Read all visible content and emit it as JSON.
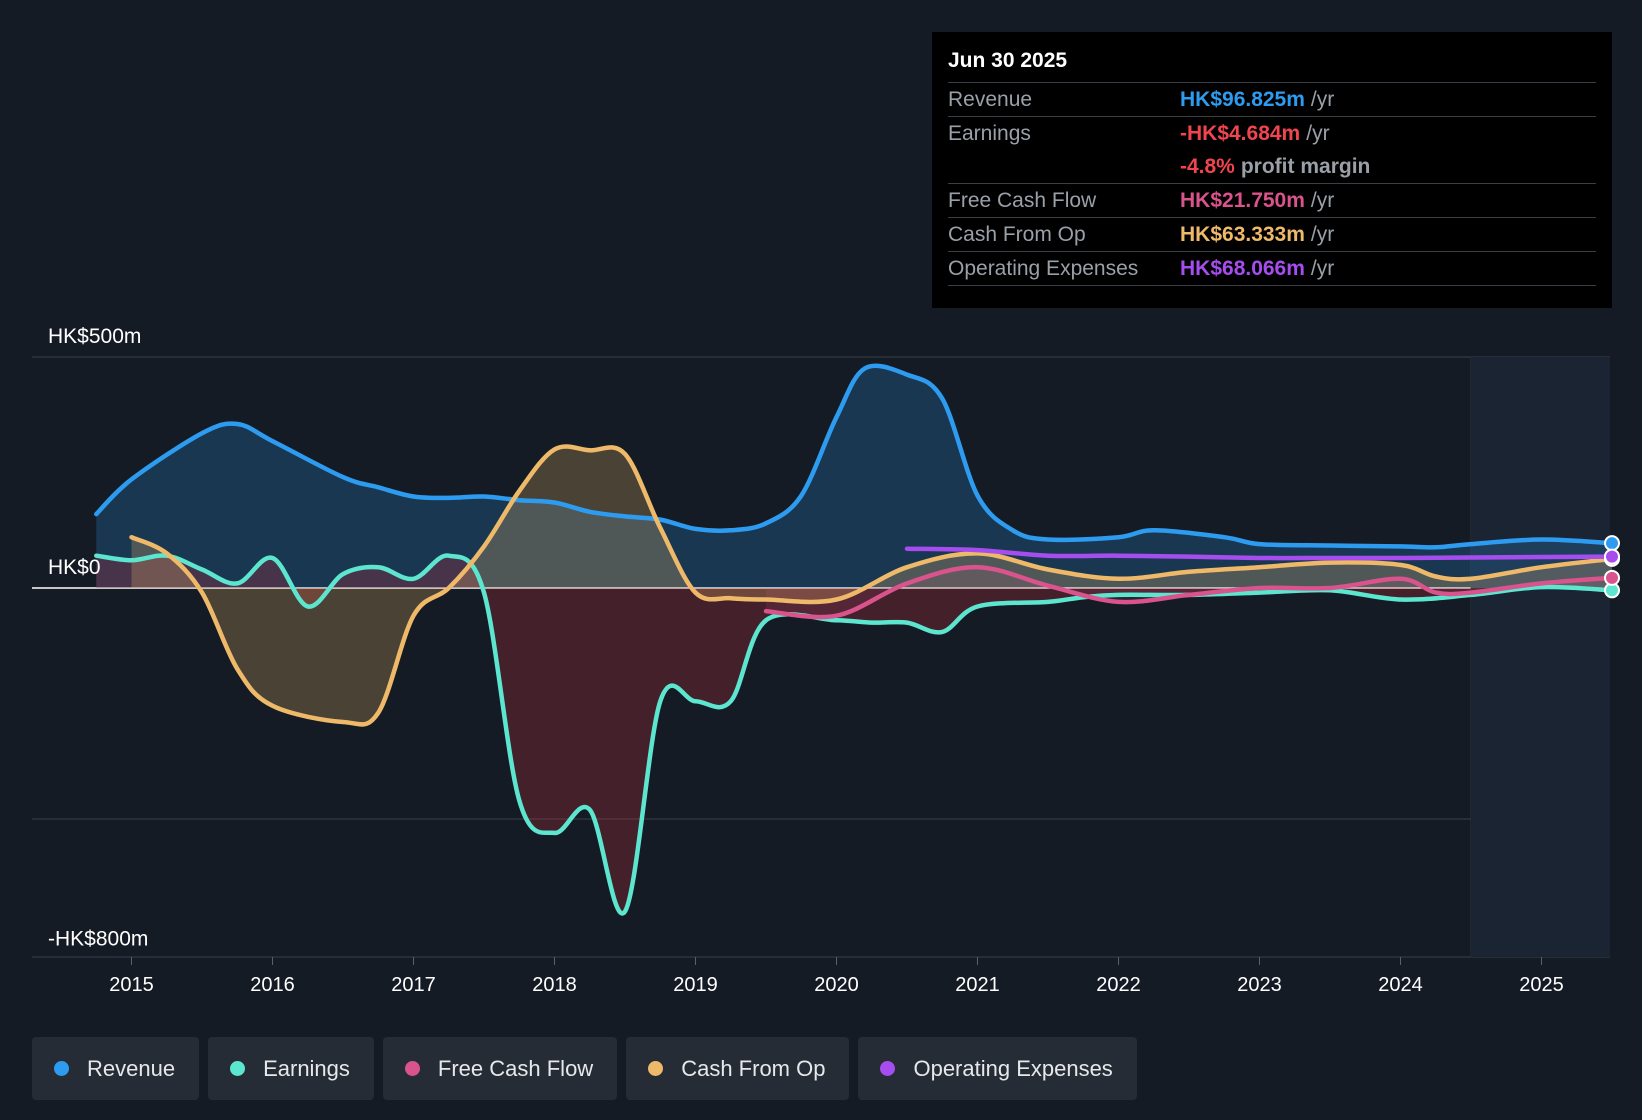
{
  "tooltip": {
    "date": "Jun 30 2025",
    "rows": [
      {
        "label": "Revenue",
        "value": "HK$96.825m",
        "unit": "/yr",
        "color": "#2d9cf0"
      },
      {
        "label": "Earnings",
        "value": "-HK$4.684m",
        "unit": "/yr",
        "color": "#f0444f"
      },
      {
        "label": "",
        "value": "-4.8%",
        "unit": "profit margin",
        "color": "#f0444f"
      },
      {
        "label": "Free Cash Flow",
        "value": "HK$21.750m",
        "unit": "/yr",
        "color": "#d9538c"
      },
      {
        "label": "Cash From Op",
        "value": "HK$63.333m",
        "unit": "/yr",
        "color": "#efb96a"
      },
      {
        "label": "Operating Expenses",
        "value": "HK$68.066m",
        "unit": "/yr",
        "color": "#a64df0"
      }
    ]
  },
  "legend": [
    {
      "label": "Revenue",
      "color": "#2d9cf0"
    },
    {
      "label": "Earnings",
      "color": "#5ce6d0"
    },
    {
      "label": "Free Cash Flow",
      "color": "#d9538c"
    },
    {
      "label": "Cash From Op",
      "color": "#efb96a"
    },
    {
      "label": "Operating Expenses",
      "color": "#a64df0"
    }
  ],
  "chart_data": {
    "type": "area",
    "title": "",
    "xlabel": "",
    "ylabel": "",
    "y_tick_labels": [
      {
        "label": "HK$500m",
        "value": 500
      },
      {
        "label": "HK$0",
        "value": 0
      },
      {
        "label": "-HK$800m",
        "value": -800
      }
    ],
    "ylim": [
      -800,
      500
    ],
    "xlim": [
      2014.75,
      2025.5
    ],
    "x_ticks": [
      2015,
      2016,
      2017,
      2018,
      2019,
      2020,
      2021,
      2022,
      2023,
      2024,
      2025
    ],
    "forecast_shade_start": 2024.5,
    "gridlines": [
      500,
      0,
      -500
    ],
    "series": [
      {
        "name": "Revenue",
        "color": "#2d9cf0",
        "fill": true,
        "points": [
          [
            2014.75,
            160
          ],
          [
            2015,
            235
          ],
          [
            2015.5,
            335
          ],
          [
            2015.75,
            355
          ],
          [
            2016,
            318
          ],
          [
            2016.5,
            240
          ],
          [
            2016.75,
            218
          ],
          [
            2017,
            198
          ],
          [
            2017.25,
            195
          ],
          [
            2017.5,
            198
          ],
          [
            2017.75,
            190
          ],
          [
            2018,
            185
          ],
          [
            2018.25,
            165
          ],
          [
            2018.5,
            155
          ],
          [
            2018.75,
            148
          ],
          [
            2019,
            128
          ],
          [
            2019.25,
            125
          ],
          [
            2019.5,
            140
          ],
          [
            2019.75,
            200
          ],
          [
            2020,
            370
          ],
          [
            2020.2,
            475
          ],
          [
            2020.5,
            462
          ],
          [
            2020.75,
            410
          ],
          [
            2021,
            200
          ],
          [
            2021.25,
            125
          ],
          [
            2021.5,
            105
          ],
          [
            2022,
            110
          ],
          [
            2022.25,
            125
          ],
          [
            2022.75,
            110
          ],
          [
            2023,
            95
          ],
          [
            2023.5,
            92
          ],
          [
            2024,
            90
          ],
          [
            2024.25,
            88
          ],
          [
            2024.5,
            95
          ],
          [
            2025,
            105
          ],
          [
            2025.5,
            97
          ]
        ]
      },
      {
        "name": "Earnings",
        "color": "#5ce6d0",
        "fill": true,
        "points": [
          [
            2014.75,
            70
          ],
          [
            2015,
            60
          ],
          [
            2015.25,
            70
          ],
          [
            2015.5,
            40
          ],
          [
            2015.75,
            10
          ],
          [
            2016,
            65
          ],
          [
            2016.25,
            -40
          ],
          [
            2016.5,
            30
          ],
          [
            2016.75,
            45
          ],
          [
            2017,
            20
          ],
          [
            2017.25,
            70
          ],
          [
            2017.5,
            -10
          ],
          [
            2017.75,
            -460
          ],
          [
            2018,
            -530
          ],
          [
            2018.25,
            -480
          ],
          [
            2018.5,
            -700
          ],
          [
            2018.75,
            -245
          ],
          [
            2019,
            -245
          ],
          [
            2019.25,
            -245
          ],
          [
            2019.5,
            -70
          ],
          [
            2020,
            -70
          ],
          [
            2020.25,
            -75
          ],
          [
            2020.5,
            -75
          ],
          [
            2020.75,
            -95
          ],
          [
            2021,
            -40
          ],
          [
            2021.5,
            -30
          ],
          [
            2021.75,
            -20
          ],
          [
            2022,
            -15
          ],
          [
            2022.5,
            -15
          ],
          [
            2023,
            -10
          ],
          [
            2023.5,
            -5
          ],
          [
            2024,
            -25
          ],
          [
            2024.5,
            -15
          ],
          [
            2025,
            2
          ],
          [
            2025.5,
            -5
          ]
        ]
      },
      {
        "name": "Free Cash Flow",
        "color": "#d9538c",
        "fill": true,
        "points": [
          [
            2019.5,
            -50
          ],
          [
            2020,
            -60
          ],
          [
            2020.5,
            10
          ],
          [
            2021,
            45
          ],
          [
            2021.5,
            5
          ],
          [
            2022,
            -30
          ],
          [
            2022.5,
            -15
          ],
          [
            2023,
            0
          ],
          [
            2023.5,
            0
          ],
          [
            2024,
            20
          ],
          [
            2024.25,
            -10
          ],
          [
            2024.5,
            -10
          ],
          [
            2025,
            10
          ],
          [
            2025.5,
            22
          ]
        ]
      },
      {
        "name": "Cash From Op",
        "color": "#efb96a",
        "fill": true,
        "points": [
          [
            2015,
            110
          ],
          [
            2015.25,
            75
          ],
          [
            2015.5,
            -10
          ],
          [
            2015.75,
            -175
          ],
          [
            2016,
            -255
          ],
          [
            2016.5,
            -290
          ],
          [
            2016.75,
            -270
          ],
          [
            2017,
            -60
          ],
          [
            2017.25,
            0
          ],
          [
            2017.5,
            90
          ],
          [
            2017.75,
            210
          ],
          [
            2018,
            300
          ],
          [
            2018.25,
            298
          ],
          [
            2018.5,
            290
          ],
          [
            2018.75,
            130
          ],
          [
            2019,
            -10
          ],
          [
            2019.25,
            -22
          ],
          [
            2019.5,
            -25
          ],
          [
            2020,
            -25
          ],
          [
            2020.5,
            45
          ],
          [
            2021,
            75
          ],
          [
            2021.5,
            40
          ],
          [
            2022,
            20
          ],
          [
            2022.5,
            35
          ],
          [
            2023,
            45
          ],
          [
            2023.5,
            55
          ],
          [
            2024,
            50
          ],
          [
            2024.25,
            25
          ],
          [
            2024.5,
            20
          ],
          [
            2025,
            45
          ],
          [
            2025.5,
            63
          ]
        ]
      },
      {
        "name": "Operating Expenses",
        "color": "#a64df0",
        "fill": false,
        "points": [
          [
            2020.5,
            85
          ],
          [
            2021,
            82
          ],
          [
            2021.5,
            70
          ],
          [
            2022,
            70
          ],
          [
            2022.5,
            68
          ],
          [
            2023,
            65
          ],
          [
            2023.5,
            65
          ],
          [
            2024,
            65
          ],
          [
            2024.5,
            66
          ],
          [
            2025,
            67
          ],
          [
            2025.5,
            68
          ]
        ]
      }
    ]
  }
}
